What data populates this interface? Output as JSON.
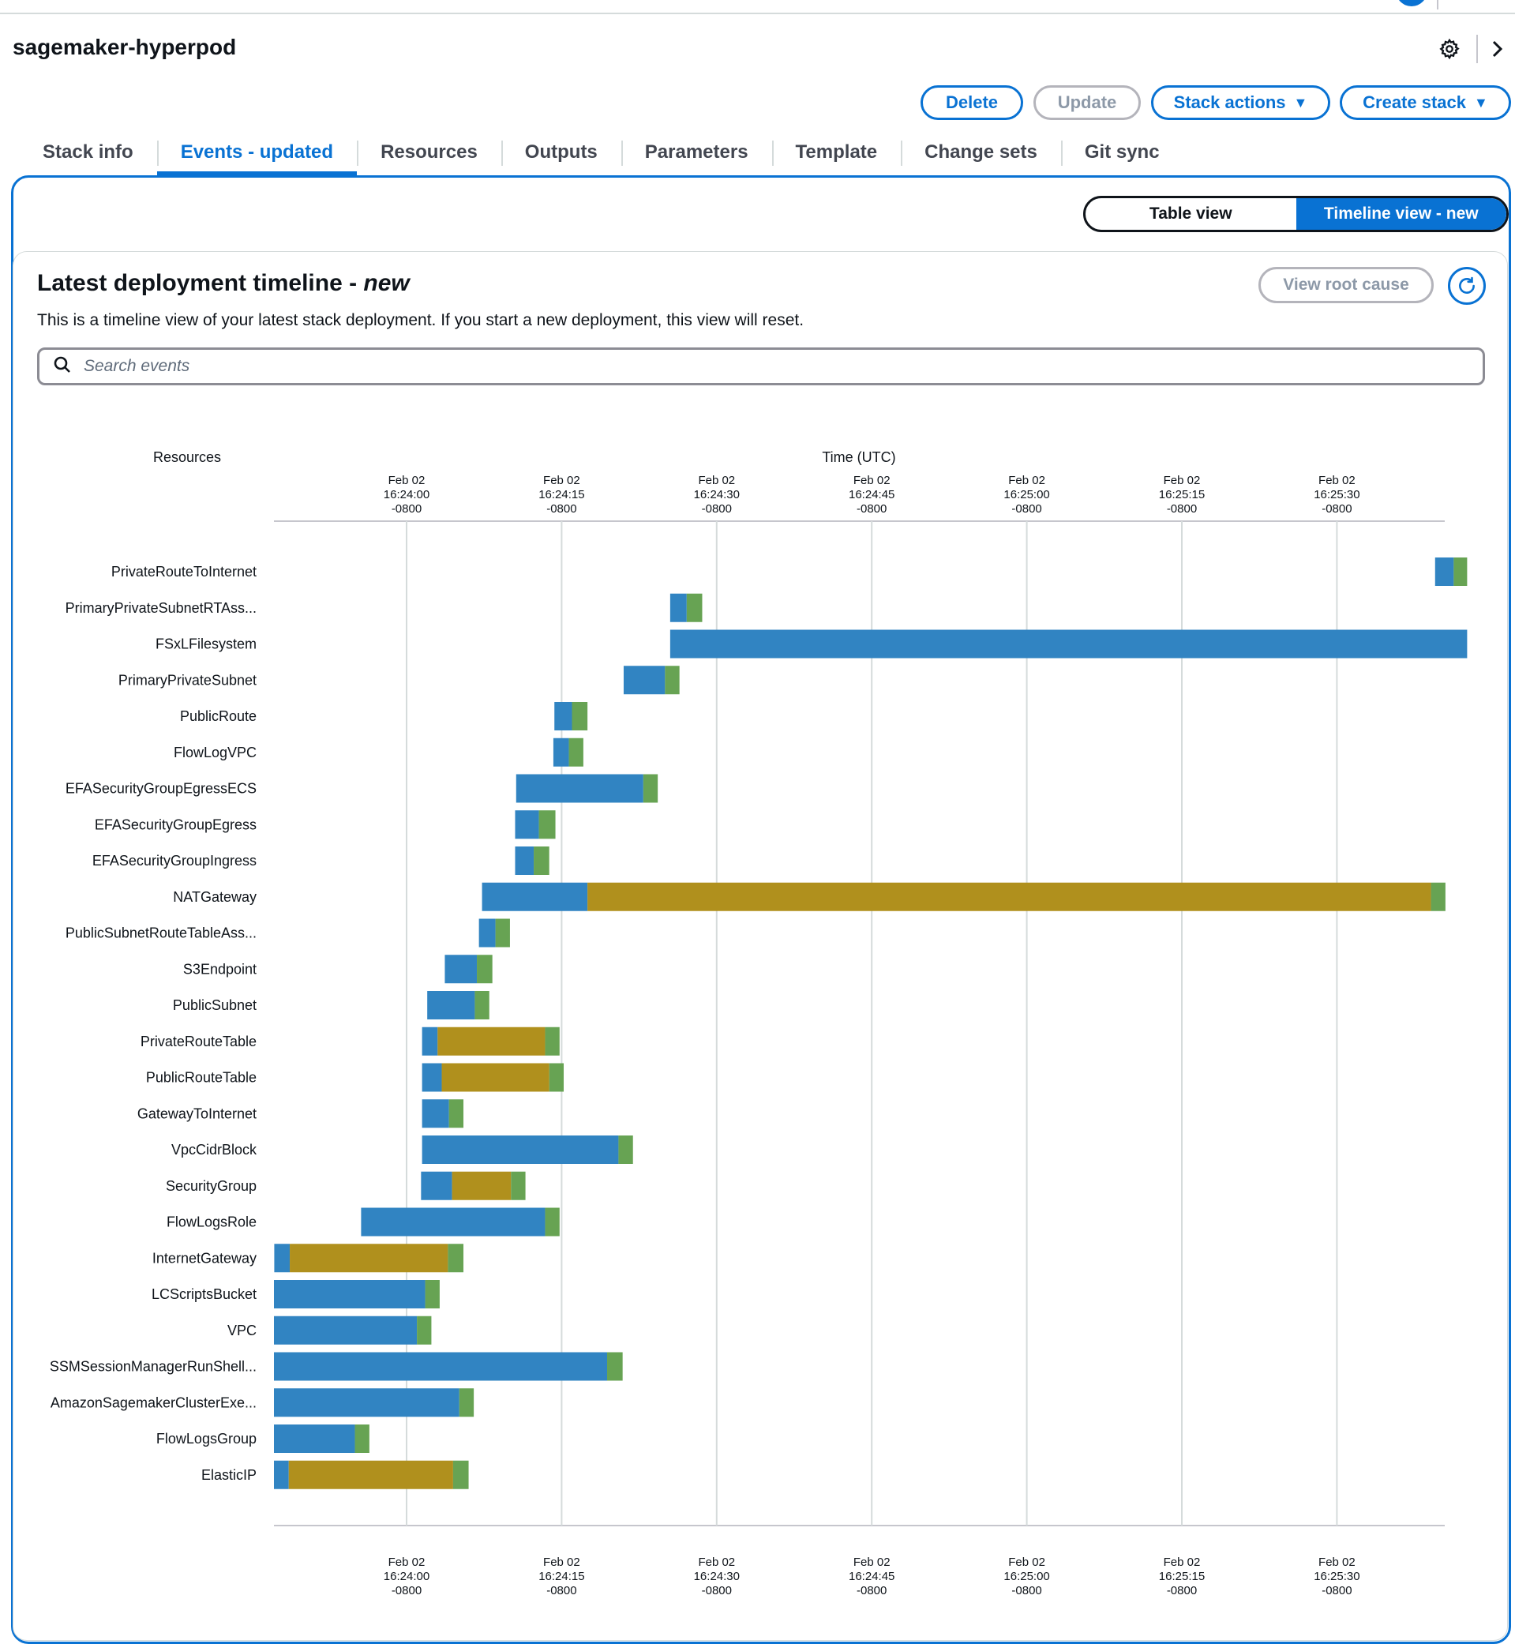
{
  "header": {
    "stack_name": "sagemaker-hyperpod",
    "icons": [
      "gear-icon",
      "chevron-right-icon"
    ]
  },
  "actions": {
    "delete": "Delete",
    "update": "Update",
    "stack_actions": "Stack actions",
    "create_stack": "Create stack",
    "caret": "▼"
  },
  "tabs": [
    {
      "label": "Stack info",
      "active": false
    },
    {
      "label": "Events - updated",
      "active": true
    },
    {
      "label": "Resources",
      "active": false
    },
    {
      "label": "Outputs",
      "active": false
    },
    {
      "label": "Parameters",
      "active": false
    },
    {
      "label": "Template",
      "active": false
    },
    {
      "label": "Change sets",
      "active": false
    },
    {
      "label": "Git sync",
      "active": false
    }
  ],
  "view_toggle": {
    "table": "Table view",
    "timeline": "Timeline view - new",
    "selected": "timeline"
  },
  "panel": {
    "title": "Latest deployment timeline - ",
    "title_em": "new",
    "description": "This is a timeline view of your latest stack deployment. If you start a new deployment, this view will reset.",
    "view_root_cause": "View root cause",
    "search_placeholder": "Search events"
  },
  "colors": {
    "in_progress": "#3184c2",
    "configuration_complete": "#b0901d",
    "complete": "#67a353",
    "gridline": "#d5dbdb",
    "accent": "#0972d3"
  },
  "chart_data": {
    "type": "gantt",
    "y_axis_title": "Resources",
    "x_axis_title": "Time (UTC)",
    "x_ticks": [
      {
        "lines": [
          "Feb 02",
          "16:24:00",
          "-0800"
        ]
      },
      {
        "lines": [
          "Feb 02",
          "16:24:15",
          "-0800"
        ]
      },
      {
        "lines": [
          "Feb 02",
          "16:24:30",
          "-0800"
        ]
      },
      {
        "lines": [
          "Feb 02",
          "16:24:45",
          "-0800"
        ]
      },
      {
        "lines": [
          "Feb 02",
          "16:25:00",
          "-0800"
        ]
      },
      {
        "lines": [
          "Feb 02",
          "16:25:15",
          "-0800"
        ]
      },
      {
        "lines": [
          "Feb 02",
          "16:25:30",
          "-0800"
        ]
      }
    ],
    "x_unit": "seconds after 16:24:00 -0800",
    "x_range": [
      -13,
      100.5
    ],
    "tick_values": [
      0,
      15,
      30,
      45,
      60,
      75,
      90
    ],
    "resources": [
      {
        "name": "PrivateRouteToInternet",
        "segments": [
          [
            99.5,
            101.3,
            "in_progress"
          ],
          [
            101.3,
            102.6,
            "complete"
          ]
        ]
      },
      {
        "name": "PrimaryPrivateSubnetRTAss...",
        "segments": [
          [
            25.5,
            27.1,
            "in_progress"
          ],
          [
            27.1,
            28.6,
            "complete"
          ]
        ]
      },
      {
        "name": "FSxLFilesystem",
        "segments": [
          [
            25.5,
            102.6,
            "in_progress"
          ]
        ]
      },
      {
        "name": "PrimaryPrivateSubnet",
        "segments": [
          [
            21.0,
            25.0,
            "in_progress"
          ],
          [
            25.0,
            26.4,
            "complete"
          ]
        ]
      },
      {
        "name": "PublicRoute",
        "segments": [
          [
            14.3,
            16.0,
            "in_progress"
          ],
          [
            16.0,
            17.5,
            "complete"
          ]
        ]
      },
      {
        "name": "FlowLogVPC",
        "segments": [
          [
            14.2,
            15.7,
            "in_progress"
          ],
          [
            15.7,
            17.1,
            "complete"
          ]
        ]
      },
      {
        "name": "EFASecurityGroupEgressECS",
        "segments": [
          [
            10.6,
            22.9,
            "in_progress"
          ],
          [
            22.9,
            24.3,
            "complete"
          ]
        ]
      },
      {
        "name": "EFASecurityGroupEgress",
        "segments": [
          [
            10.5,
            12.8,
            "in_progress"
          ],
          [
            12.8,
            14.4,
            "complete"
          ]
        ]
      },
      {
        "name": "EFASecurityGroupIngress",
        "segments": [
          [
            10.5,
            12.3,
            "in_progress"
          ],
          [
            12.3,
            13.8,
            "complete"
          ]
        ]
      },
      {
        "name": "NATGateway",
        "segments": [
          [
            7.3,
            17.5,
            "in_progress"
          ],
          [
            17.5,
            99.1,
            "configuration_complete"
          ],
          [
            99.1,
            100.5,
            "complete"
          ]
        ]
      },
      {
        "name": "PublicSubnetRouteTableAss...",
        "segments": [
          [
            7.0,
            8.6,
            "in_progress"
          ],
          [
            8.6,
            10.0,
            "complete"
          ]
        ]
      },
      {
        "name": "S3Endpoint",
        "segments": [
          [
            3.7,
            6.8,
            "in_progress"
          ],
          [
            6.8,
            8.3,
            "complete"
          ]
        ]
      },
      {
        "name": "PublicSubnet",
        "segments": [
          [
            2.0,
            6.6,
            "in_progress"
          ],
          [
            6.6,
            8.0,
            "complete"
          ]
        ]
      },
      {
        "name": "PrivateRouteTable",
        "segments": [
          [
            1.5,
            3.0,
            "in_progress"
          ],
          [
            3.0,
            13.4,
            "configuration_complete"
          ],
          [
            13.4,
            14.8,
            "complete"
          ]
        ]
      },
      {
        "name": "PublicRouteTable",
        "segments": [
          [
            1.5,
            3.4,
            "in_progress"
          ],
          [
            3.4,
            13.8,
            "configuration_complete"
          ],
          [
            13.8,
            15.2,
            "complete"
          ]
        ]
      },
      {
        "name": "GatewayToInternet",
        "segments": [
          [
            1.5,
            4.1,
            "in_progress"
          ],
          [
            4.1,
            5.5,
            "complete"
          ]
        ]
      },
      {
        "name": "VpcCidrBlock",
        "segments": [
          [
            1.5,
            20.5,
            "in_progress"
          ],
          [
            20.5,
            21.9,
            "complete"
          ]
        ]
      },
      {
        "name": "SecurityGroup",
        "segments": [
          [
            1.4,
            4.4,
            "in_progress"
          ],
          [
            4.4,
            10.1,
            "configuration_complete"
          ],
          [
            10.1,
            11.5,
            "complete"
          ]
        ]
      },
      {
        "name": "FlowLogsRole",
        "segments": [
          [
            -4.4,
            13.4,
            "in_progress"
          ],
          [
            13.4,
            14.8,
            "complete"
          ]
        ]
      },
      {
        "name": "InternetGateway",
        "segments": [
          [
            -12.8,
            -11.3,
            "in_progress"
          ],
          [
            -11.3,
            4.0,
            "configuration_complete"
          ],
          [
            4.0,
            5.5,
            "complete"
          ]
        ]
      },
      {
        "name": "LCScriptsBucket",
        "segments": [
          [
            -13.0,
            1.8,
            "in_progress"
          ],
          [
            1.8,
            3.2,
            "complete"
          ]
        ]
      },
      {
        "name": "VPC",
        "segments": [
          [
            -13.0,
            1.0,
            "in_progress"
          ],
          [
            1.0,
            2.4,
            "complete"
          ]
        ]
      },
      {
        "name": "SSMSessionManagerRunShell...",
        "segments": [
          [
            -13.0,
            19.4,
            "in_progress"
          ],
          [
            19.4,
            20.9,
            "complete"
          ]
        ]
      },
      {
        "name": "AmazonSagemakerClusterExe...",
        "segments": [
          [
            -13.0,
            5.1,
            "in_progress"
          ],
          [
            5.1,
            6.5,
            "complete"
          ]
        ]
      },
      {
        "name": "FlowLogsGroup",
        "segments": [
          [
            -13.0,
            -5.0,
            "in_progress"
          ],
          [
            -5.0,
            -3.6,
            "complete"
          ]
        ]
      },
      {
        "name": "ElasticIP",
        "segments": [
          [
            -13.0,
            -11.4,
            "in_progress"
          ],
          [
            -11.4,
            4.5,
            "configuration_complete"
          ],
          [
            4.5,
            6.0,
            "complete"
          ]
        ]
      }
    ]
  }
}
